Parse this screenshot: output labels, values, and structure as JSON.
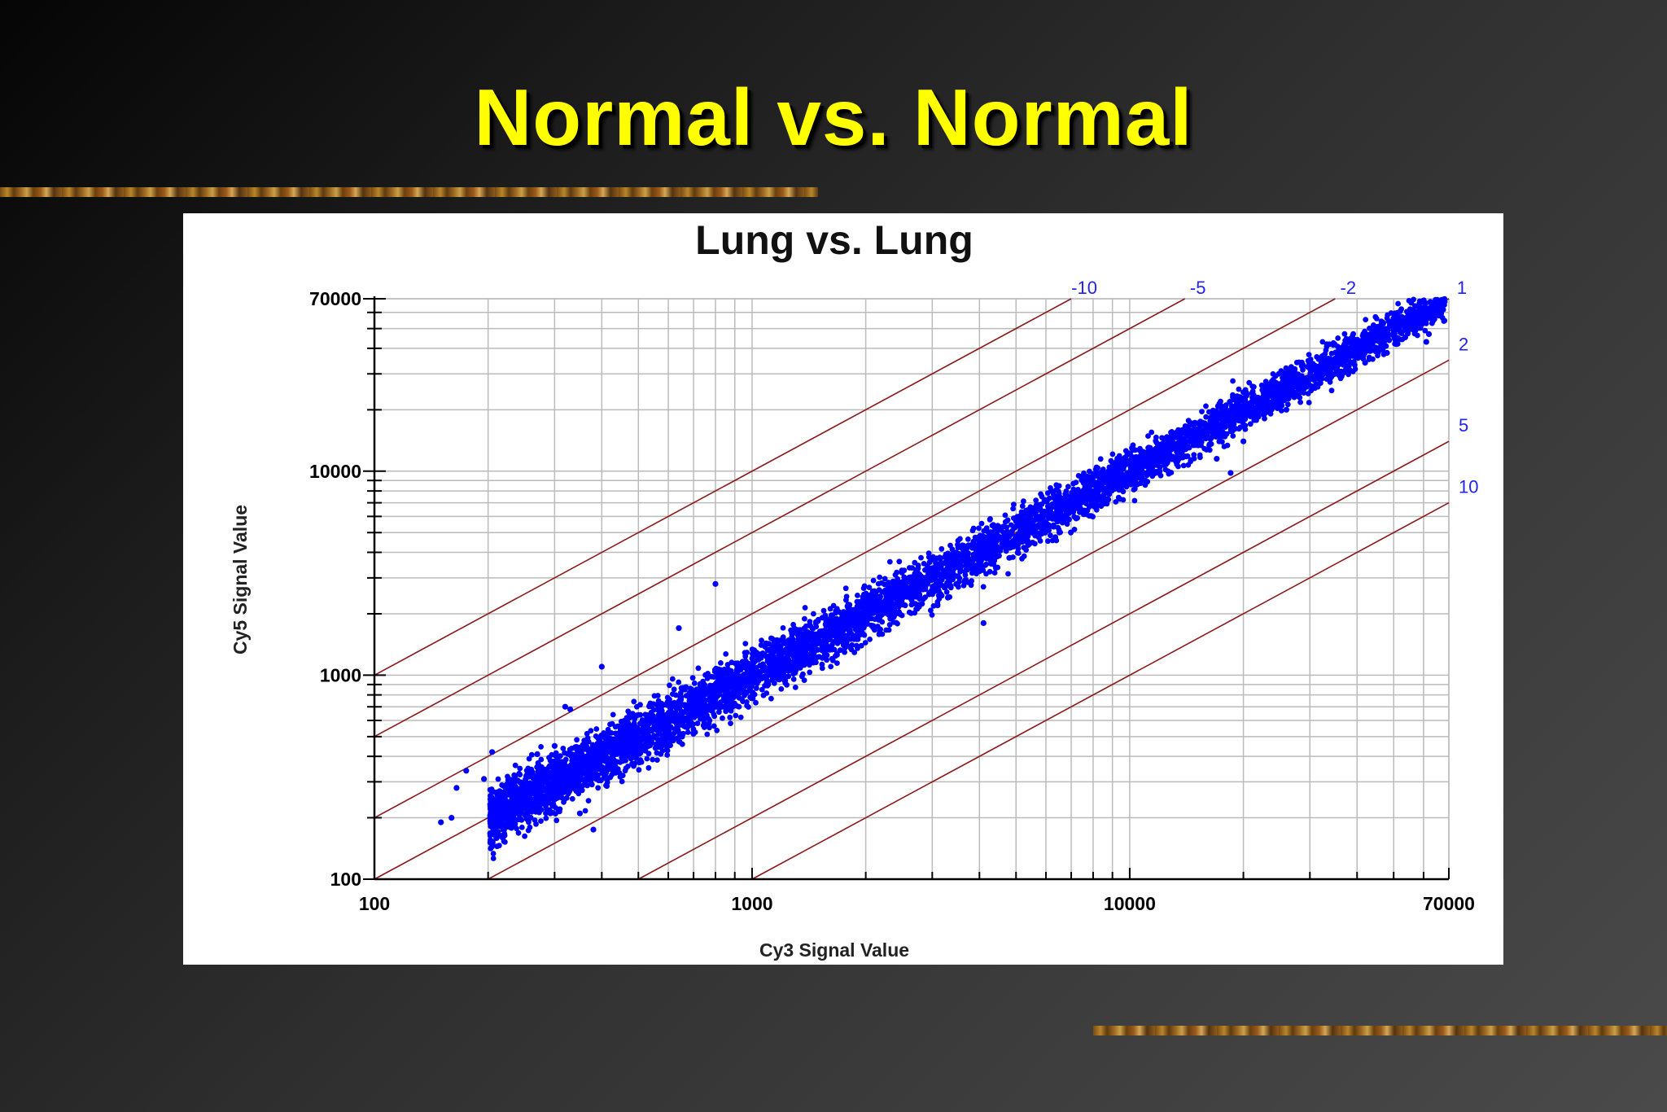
{
  "slide": {
    "title": "Normal vs. Normal"
  },
  "colors": {
    "title": "#ffff00",
    "points": "#0000ff",
    "ratio_lines": "#8b1a1a",
    "ratio_labels": "#2222ee",
    "grid": "#bbbbbb",
    "background_dark": "#1a1a1a",
    "accent_bar": "#a06a22"
  },
  "chart_data": {
    "type": "scatter",
    "title": "Lung vs. Lung",
    "xlabel": "Cy3 Signal Value",
    "ylabel": "Cy5 Signal Value",
    "x_scale": "log",
    "y_scale": "log",
    "xlim": [
      100,
      70000
    ],
    "ylim": [
      100,
      70000
    ],
    "x_tick_labels": [
      "100",
      "1000",
      "10000",
      "70000"
    ],
    "y_tick_labels": [
      "100",
      "1000",
      "10000",
      "70000"
    ],
    "grid": true,
    "legend": "none",
    "fold_change_lines": [
      {
        "label": "-10",
        "ratio": 10
      },
      {
        "label": "-5",
        "ratio": 5
      },
      {
        "label": "-2",
        "ratio": 2
      },
      {
        "label": "1",
        "ratio": 1
      },
      {
        "label": "2",
        "ratio": 0.5
      },
      {
        "label": "5",
        "ratio": 0.2
      },
      {
        "label": "10",
        "ratio": 0.1
      }
    ],
    "series": [
      {
        "distribution": "dense cloud along the diagonal y = x",
        "x_range": [
          150,
          70000
        ],
        "log10_spread": 0.08,
        "point_count": 6000,
        "outliers": [
          [
            150,
            190
          ],
          [
            160,
            200
          ],
          [
            165,
            280
          ],
          [
            175,
            340
          ],
          [
            195,
            310
          ],
          [
            205,
            420
          ],
          [
            270,
            410
          ],
          [
            300,
            450
          ],
          [
            320,
            700
          ],
          [
            330,
            680
          ],
          [
            400,
            1100
          ],
          [
            640,
            1700
          ],
          [
            800,
            2800
          ],
          [
            380,
            175
          ],
          [
            350,
            210
          ],
          [
            2850,
            3000
          ],
          [
            3100,
            2200
          ],
          [
            3300,
            2400
          ],
          [
            4100,
            1800
          ],
          [
            6000,
            5600
          ],
          [
            8400,
            7200
          ],
          [
            11000,
            9000
          ],
          [
            17000,
            11500
          ],
          [
            18500,
            9800
          ],
          [
            20000,
            14000
          ],
          [
            26000,
            20000
          ],
          [
            42000,
            34000
          ],
          [
            48000,
            38000
          ],
          [
            61000,
            43000
          ],
          [
            62000,
            47000
          ],
          [
            52000,
            52000
          ]
        ]
      }
    ]
  }
}
